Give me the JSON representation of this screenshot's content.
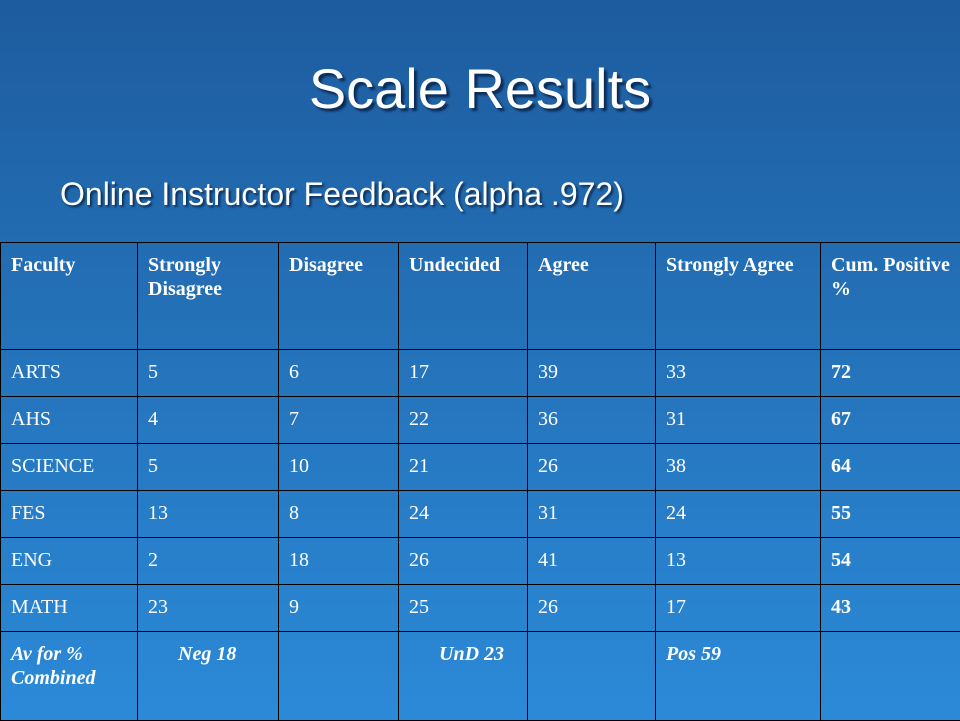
{
  "title": "Scale Results",
  "subtitle": "Online Instructor Feedback (alpha .972)",
  "table": {
    "headers": [
      "Faculty",
      "Strongly Disagree",
      "Disagree",
      "Undecided",
      "Agree",
      "Strongly Agree",
      "Cum. Positive %"
    ],
    "rows": [
      [
        "ARTS",
        5,
        6,
        17,
        39,
        33,
        72
      ],
      [
        "AHS",
        4,
        7,
        22,
        36,
        31,
        67
      ],
      [
        "SCIENCE",
        5,
        10,
        21,
        26,
        38,
        64
      ],
      [
        "FES",
        13,
        8,
        24,
        31,
        24,
        55
      ],
      [
        "ENG",
        2,
        18,
        26,
        41,
        13,
        54
      ],
      [
        "MATH",
        23,
        9,
        25,
        26,
        17,
        43
      ]
    ],
    "footer": {
      "label": "Av for % Combined",
      "negative": "Neg 18",
      "undecided": "UnD 23",
      "positive": "Pos 59"
    }
  }
}
